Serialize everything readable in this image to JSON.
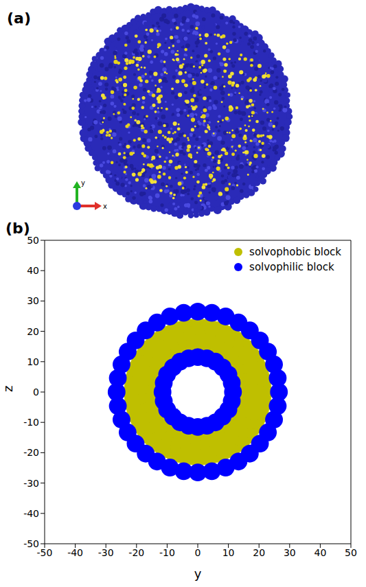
{
  "panel_a": {
    "label": "(a)",
    "type": "render",
    "axis_labels": [
      "y",
      "x"
    ]
  },
  "chart_data": {
    "label": "(b)",
    "type": "scatter",
    "x_label": "y",
    "y_label": "z",
    "xlim": [
      -50,
      50
    ],
    "ylim": [
      -50,
      50
    ],
    "xticks": [
      -50,
      -40,
      -30,
      -20,
      -10,
      0,
      10,
      20,
      30,
      40,
      50
    ],
    "yticks": [
      -50,
      -40,
      -30,
      -20,
      -10,
      0,
      10,
      20,
      30,
      40,
      50
    ],
    "grid": false,
    "legend": "upper right",
    "marker": "circle",
    "series": [
      {
        "name": "solvophobic block",
        "color": "#bfbf00",
        "points": [
          [
            18.5,
            0
          ],
          [
            18.2,
            3.2
          ],
          [
            17.4,
            6.3
          ],
          [
            16.0,
            9.3
          ],
          [
            14.2,
            11.9
          ],
          [
            11.9,
            14.2
          ],
          [
            9.3,
            16.0
          ],
          [
            6.3,
            17.4
          ],
          [
            3.2,
            18.2
          ],
          [
            0,
            18.5
          ],
          [
            -3.2,
            18.2
          ],
          [
            -6.3,
            17.4
          ],
          [
            -9.3,
            16.0
          ],
          [
            -11.9,
            14.2
          ],
          [
            -14.2,
            11.9
          ],
          [
            -16.0,
            9.3
          ],
          [
            -17.4,
            6.3
          ],
          [
            -18.2,
            3.2
          ],
          [
            -18.5,
            0
          ],
          [
            -18.2,
            -3.2
          ],
          [
            -17.4,
            -6.3
          ],
          [
            -16.0,
            -9.3
          ],
          [
            -14.2,
            -11.9
          ],
          [
            -11.9,
            -14.2
          ],
          [
            -9.3,
            -16.0
          ],
          [
            -6.3,
            -17.4
          ],
          [
            -3.2,
            -18.2
          ],
          [
            0,
            -18.5
          ],
          [
            3.2,
            -18.2
          ],
          [
            6.3,
            -17.4
          ],
          [
            9.3,
            -16.0
          ],
          [
            11.9,
            -14.2
          ],
          [
            14.2,
            -11.9
          ],
          [
            16.0,
            -9.3
          ],
          [
            17.4,
            -6.3
          ],
          [
            18.2,
            -3.2
          ]
        ]
      },
      {
        "name": "solvophilic block",
        "color": "#0000ff",
        "points": [
          [
            26.5,
            0
          ],
          [
            26.1,
            4.6
          ],
          [
            24.9,
            9.1
          ],
          [
            22.9,
            13.3
          ],
          [
            20.3,
            17.0
          ],
          [
            17.0,
            20.3
          ],
          [
            13.3,
            22.9
          ],
          [
            9.1,
            24.9
          ],
          [
            4.6,
            26.1
          ],
          [
            0,
            26.5
          ],
          [
            -4.6,
            26.1
          ],
          [
            -9.1,
            24.9
          ],
          [
            -13.3,
            22.9
          ],
          [
            -17.0,
            20.3
          ],
          [
            -20.3,
            17.0
          ],
          [
            -22.9,
            13.3
          ],
          [
            -24.9,
            9.1
          ],
          [
            -26.1,
            4.6
          ],
          [
            -26.5,
            0
          ],
          [
            -26.1,
            -4.6
          ],
          [
            -24.9,
            -9.1
          ],
          [
            -22.9,
            -13.3
          ],
          [
            -20.3,
            -17.0
          ],
          [
            -17.0,
            -20.3
          ],
          [
            -13.3,
            -22.9
          ],
          [
            -9.1,
            -24.9
          ],
          [
            -4.6,
            -26.1
          ],
          [
            0,
            -26.5
          ],
          [
            4.6,
            -26.1
          ],
          [
            9.1,
            -24.9
          ],
          [
            13.3,
            -22.9
          ],
          [
            17.0,
            -20.3
          ],
          [
            20.3,
            -17.0
          ],
          [
            22.9,
            -13.3
          ],
          [
            24.9,
            -9.1
          ],
          [
            26.1,
            -4.6
          ],
          [
            11.5,
            0
          ],
          [
            11.1,
            3.0
          ],
          [
            10.0,
            5.8
          ],
          [
            8.1,
            8.1
          ],
          [
            5.8,
            10.0
          ],
          [
            3.0,
            11.1
          ],
          [
            0,
            11.5
          ],
          [
            -3.0,
            11.1
          ],
          [
            -5.8,
            10.0
          ],
          [
            -8.1,
            8.1
          ],
          [
            -10.0,
            5.8
          ],
          [
            -11.1,
            3.0
          ],
          [
            -11.5,
            0
          ],
          [
            -11.1,
            -3.0
          ],
          [
            -10.0,
            -5.8
          ],
          [
            -8.1,
            -8.1
          ],
          [
            -5.8,
            -10.0
          ],
          [
            -3.0,
            -11.1
          ],
          [
            0,
            -11.5
          ],
          [
            3.0,
            -11.1
          ],
          [
            5.8,
            -10.0
          ],
          [
            8.1,
            -8.1
          ],
          [
            10.0,
            -5.8
          ],
          [
            11.1,
            -3.0
          ]
        ]
      }
    ]
  }
}
